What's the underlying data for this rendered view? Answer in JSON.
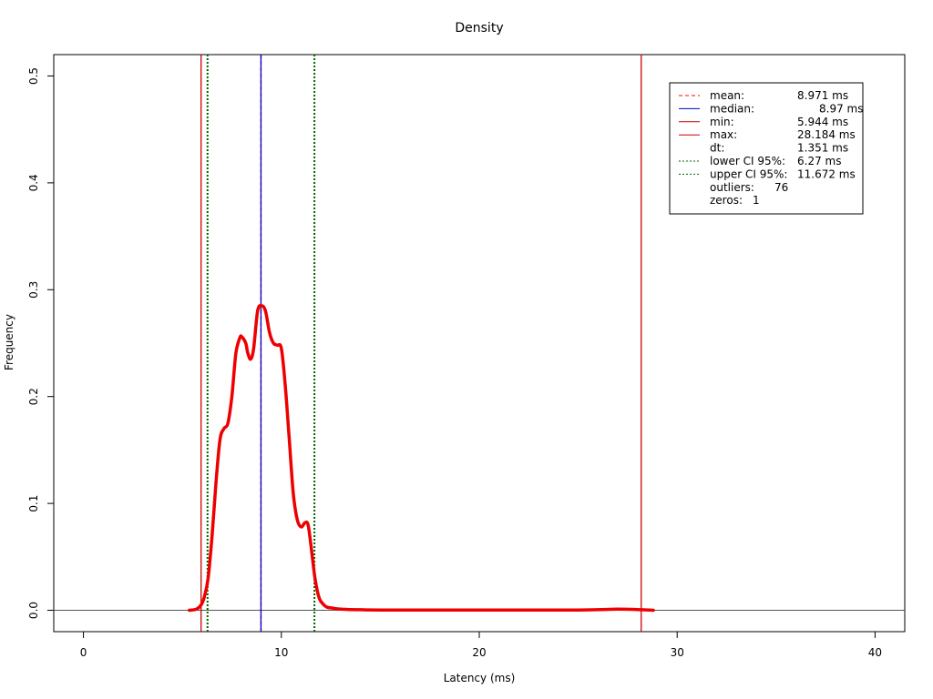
{
  "chart_data": {
    "type": "line",
    "title": "Density",
    "xlabel": "Latency (ms)",
    "ylabel": "Frequency",
    "xlim": [
      -1.5,
      41.5
    ],
    "ylim": [
      -0.02,
      0.52
    ],
    "xticks": [
      0,
      10,
      20,
      30,
      40
    ],
    "yticks": [
      0.0,
      0.1,
      0.2,
      0.3,
      0.4,
      0.5
    ],
    "grid": false,
    "series": [
      {
        "x": [
          5.35,
          5.7,
          5.944,
          6.1,
          6.3,
          6.5,
          6.7,
          6.9,
          7.1,
          7.3,
          7.5,
          7.7,
          7.9,
          8.0,
          8.2,
          8.3,
          8.45,
          8.6,
          8.8,
          9.0,
          9.2,
          9.4,
          9.6,
          9.8,
          10.0,
          10.2,
          10.4,
          10.6,
          10.8,
          11.0,
          11.2,
          11.35,
          11.5,
          11.7,
          11.9,
          12.1,
          12.3,
          12.6,
          13.0,
          14.0,
          15.0,
          20.0,
          25.0,
          27.0,
          28.2,
          28.8
        ],
        "y": [
          0.0,
          0.001,
          0.005,
          0.012,
          0.03,
          0.07,
          0.12,
          0.16,
          0.17,
          0.175,
          0.2,
          0.24,
          0.255,
          0.256,
          0.25,
          0.241,
          0.235,
          0.245,
          0.28,
          0.285,
          0.28,
          0.26,
          0.25,
          0.248,
          0.245,
          0.21,
          0.16,
          0.11,
          0.085,
          0.078,
          0.082,
          0.08,
          0.06,
          0.03,
          0.012,
          0.006,
          0.003,
          0.002,
          0.001,
          0.0005,
          0.0003,
          0.0003,
          0.0003,
          0.001,
          0.0005,
          0.0
        ]
      }
    ],
    "vlines": [
      {
        "name": "mean",
        "x": 8.971,
        "color": "#FF0000",
        "dash": "dashed"
      },
      {
        "name": "median",
        "x": 8.97,
        "color": "#0000CC",
        "dash": "solid"
      },
      {
        "name": "min",
        "x": 5.944,
        "color": "#CC0000",
        "dash": "solid"
      },
      {
        "name": "max",
        "x": 28.184,
        "color": "#CC0000",
        "dash": "solid"
      },
      {
        "name": "lower-ci",
        "x": 6.27,
        "color": "#006400",
        "dash": "dotted"
      },
      {
        "name": "upper-ci",
        "x": 11.672,
        "color": "#006400",
        "dash": "dotted"
      }
    ],
    "hline": {
      "y": 0,
      "color": "#555555"
    },
    "curve_color": "#EE0000",
    "legend": {
      "placement": "top-right",
      "entries": [
        {
          "label": "mean:",
          "value": "8.971 ms",
          "line_color": "#FF0000",
          "line_style": "dashed"
        },
        {
          "label": "median:",
          "value": "8.97 ms",
          "line_color": "#0000CC",
          "line_style": "solid"
        },
        {
          "label": "min:",
          "value": "5.944 ms",
          "line_color": "#CC0000",
          "line_style": "solid"
        },
        {
          "label": "max:",
          "value": "28.184 ms",
          "line_color": "#CC0000",
          "line_style": "solid"
        },
        {
          "label": "dt:",
          "value": "1.351 ms",
          "line_color": "",
          "line_style": "none"
        },
        {
          "label": "lower CI 95%:",
          "value": "6.27 ms",
          "line_color": "#006400",
          "line_style": "dotted"
        },
        {
          "label": "upper CI 95%:",
          "value": "11.672 ms",
          "line_color": "#006400",
          "line_style": "dotted"
        },
        {
          "label": "outliers:",
          "value": "76",
          "line_color": "",
          "line_style": "none"
        },
        {
          "label": "zeros:",
          "value": "1",
          "line_color": "",
          "line_style": "none"
        }
      ]
    }
  }
}
